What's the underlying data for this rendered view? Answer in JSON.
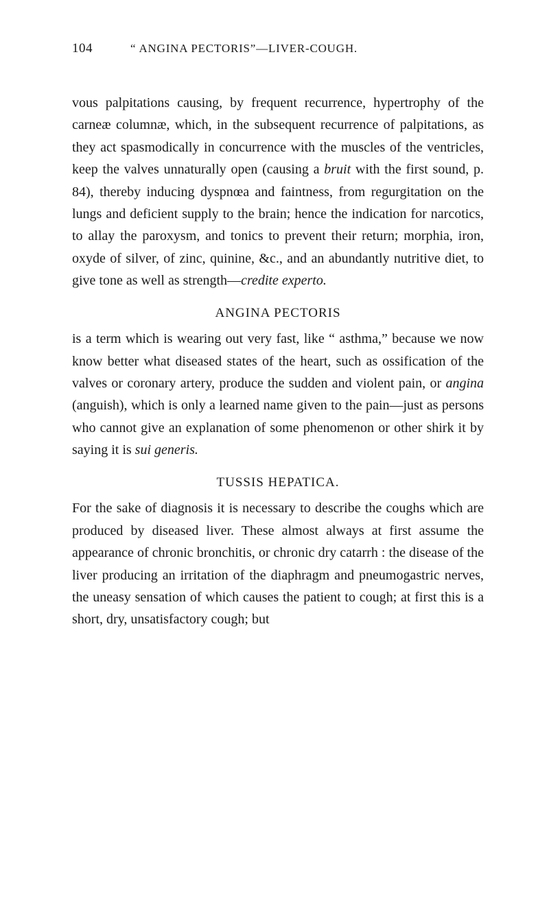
{
  "header": {
    "page_number": "104",
    "title": "“ ANGINA PECTORIS”—LIVER-COUGH."
  },
  "paragraphs": {
    "p1_part1": "vous palpitations causing, by frequent recurrence, hypertrophy of the carneæ columnæ, which, in the subsequent recurrence of palpitations, as they act spasmodically in concurrence with the muscles of the ventricles, keep the valves unnaturally open (causing a ",
    "p1_italic1": "bruit",
    "p1_part2": " with the first sound, p. 84), thereby inducing dyspnœa and faintness, from regurgitation on the lungs and deficient supply to the brain; hence the indication for narcotics, to allay the paroxysm, and tonics to prevent their return; morphia, iron, oxyde of silver, of zinc, quinine, &c., and an abundantly nutritive diet, to give tone as well as strength—",
    "p1_italic2": "credite experto.",
    "heading1": "ANGINA PECTORIS",
    "p2_part1": "is a term which is wearing out very fast, like “ asthma,” because we now know better what diseased states of the heart, such as ossification of the valves or coronary artery, produce the sudden and violent pain, or ",
    "p2_italic1": "angina",
    "p2_part2": " (anguish), which is only a learned name given to the pain—just as persons who cannot give an explanation of some phenomenon or other shirk it by saying it is ",
    "p2_italic2": "sui generis.",
    "heading2": "TUSSIS HEPATICA.",
    "p3": "For the sake of diagnosis it is necessary to describe the coughs which are produced by diseased liver. These almost always at first assume the appearance of chronic bronchitis, or chronic dry catarrh : the disease of the liver producing an irritation of the diaphragm and pneumogastric nerves, the uneasy sensation of which causes the patient to cough; at first this is a short, dry, unsatisfactory cough; but"
  }
}
